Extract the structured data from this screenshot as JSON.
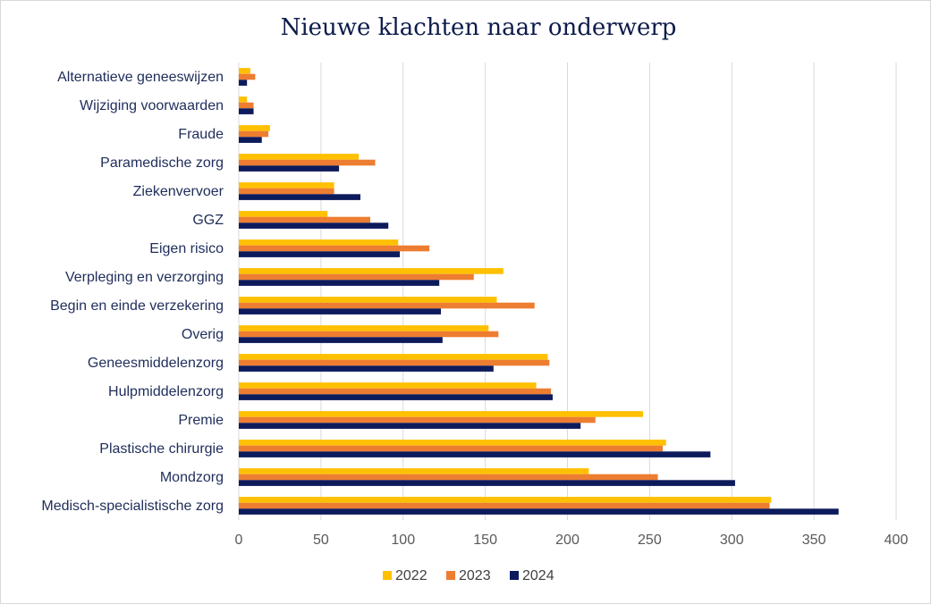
{
  "chart_data": {
    "type": "bar",
    "orientation": "horizontal",
    "title": "Nieuwe klachten naar onderwerp",
    "xlabel": "",
    "ylabel": "",
    "xlim": [
      0,
      400
    ],
    "xticks": [
      "0",
      "50",
      "100",
      "150",
      "200",
      "250",
      "300",
      "350",
      "400"
    ],
    "grid": "vertical",
    "legend": "bottom",
    "categories": [
      "Alternatieve geneeswijzen",
      "Wijziging voorwaarden",
      "Fraude",
      "Paramedische zorg",
      "Ziekenvervoer",
      "GGZ",
      "Eigen risico",
      "Verpleging en verzorging",
      "Begin en einde verzekering",
      "Overig",
      "Geneesmiddelenzorg",
      "Hulpmiddelenzorg",
      "Premie",
      "Plastische chirurgie",
      "Mondzorg",
      "Medisch-specialistische zorg"
    ],
    "series": [
      {
        "name": "2022",
        "color": "#FFC000",
        "values": [
          7,
          5,
          19,
          73,
          58,
          54,
          97,
          161,
          157,
          152,
          188,
          181,
          246,
          260,
          213,
          324
        ]
      },
      {
        "name": "2023",
        "color": "#ED7D31",
        "values": [
          10,
          9,
          18,
          83,
          58,
          80,
          116,
          143,
          180,
          158,
          189,
          190,
          217,
          258,
          255,
          323
        ]
      },
      {
        "name": "2024",
        "color": "#0D1B5C",
        "values": [
          5,
          9,
          14,
          61,
          74,
          91,
          98,
          122,
          123,
          124,
          155,
          191,
          208,
          287,
          302,
          365
        ]
      }
    ]
  }
}
